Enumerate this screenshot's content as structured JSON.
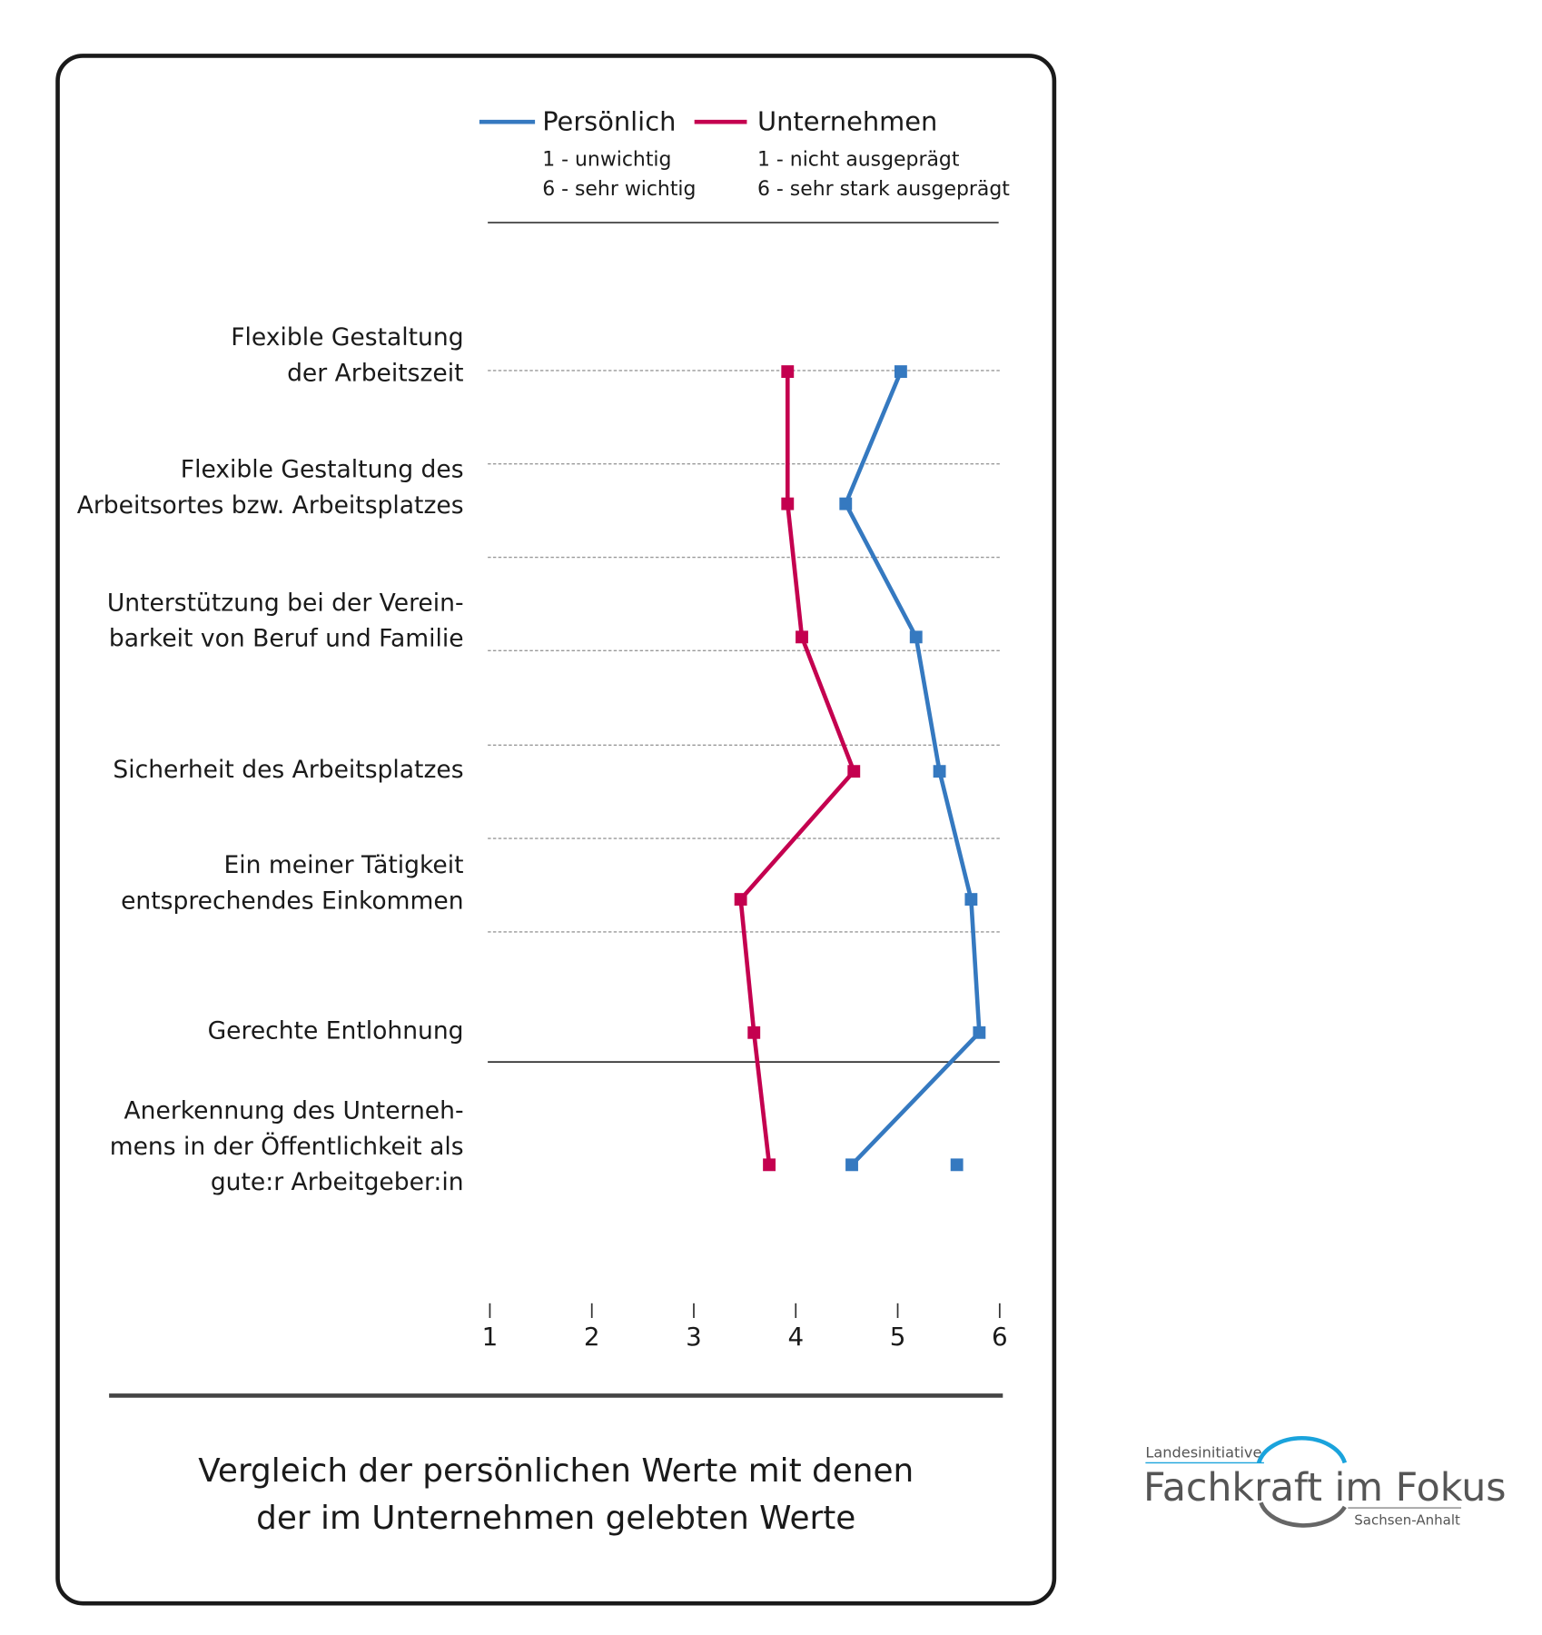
{
  "chart_data": {
    "type": "line",
    "orientation": "horizontal",
    "title": [
      "Vergleich der persönlichen Werte mit denen",
      "der im Unternehmen gelebten Werte"
    ],
    "categories": [
      [
        "Flexible Gestaltung",
        "der Arbeitszeit"
      ],
      [
        "Flexible Gestaltung des",
        "Arbeitsortes bzw. Arbeitsplatzes"
      ],
      [
        "Unterstützung bei der Verein-",
        "barkeit von Beruf und Familie"
      ],
      [
        "Sicherheit des Arbeitsplatzes"
      ],
      [
        "Ein meiner Tätigkeit",
        "entsprechendes Einkommen"
      ],
      [
        "Gerechte Entlohnung"
      ],
      [
        "Anerkennung des Unterneh-",
        "mens in der Öffentlichkeit als",
        "gute:r Arbeitgeber:in"
      ]
    ],
    "series": [
      {
        "name": "Persönlich",
        "color": "#3579c0",
        "scale_notes": [
          "1 - unwichtig",
          "6 - sehr wichtig"
        ],
        "values": [
          5.03,
          4.49,
          5.18,
          5.41,
          5.72,
          5.8,
          4.55
        ],
        "extra_points": [
          {
            "category_index": 6,
            "value": 5.58
          }
        ]
      },
      {
        "name": "Unternehmen",
        "color": "#c4004f",
        "scale_notes": [
          "1 - nicht ausgeprägt",
          "6 - sehr stark ausgeprägt"
        ],
        "values": [
          3.92,
          3.92,
          4.06,
          4.57,
          3.46,
          3.59,
          3.74
        ]
      }
    ],
    "xlim": [
      1,
      6
    ],
    "xticks": [
      "1",
      "2",
      "3",
      "4",
      "5",
      "6"
    ],
    "legend_position": "top",
    "grid": true
  },
  "logo": {
    "top": "Landesinitiative",
    "main": "Fachkraft im Fokus",
    "bottom": "Sachsen-Anhalt"
  }
}
